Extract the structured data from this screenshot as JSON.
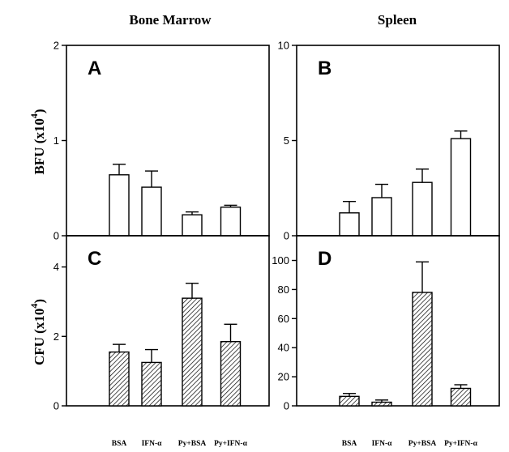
{
  "columns": {
    "left": "Bone Marrow",
    "right": "Spleen"
  },
  "ylabels": {
    "top": {
      "main": "BFU (x10",
      "sup": "4",
      "close": ")"
    },
    "bottom": {
      "main": "CFU (x10",
      "sup": "4",
      "close": ")"
    }
  },
  "colors": {
    "bar_fill": "#ffffff",
    "stroke": "#000000",
    "hatch": "#000000"
  },
  "chart_data": [
    {
      "type": "bar",
      "panel": "A",
      "title": "",
      "xlabel": "",
      "ylabel": "BFU (x10^4)",
      "categories": [
        "BSA",
        "IFN-α",
        "Py+BSA",
        "Py+IFN-α"
      ],
      "values": [
        0.64,
        0.51,
        0.22,
        0.3
      ],
      "errors": [
        0.11,
        0.17,
        0.03,
        0.02
      ],
      "ylim": [
        0,
        2
      ],
      "yticks": [
        0,
        1,
        2
      ],
      "fill": "open",
      "grid": false
    },
    {
      "type": "bar",
      "panel": "B",
      "title": "",
      "xlabel": "",
      "ylabel": "",
      "categories": [
        "BSA",
        "IFN-α",
        "Py+BSA",
        "Py+IFN-α"
      ],
      "values": [
        1.2,
        2.0,
        2.8,
        5.1
      ],
      "errors": [
        0.6,
        0.7,
        0.7,
        0.4
      ],
      "ylim": [
        0,
        10
      ],
      "yticks": [
        0,
        5,
        10
      ],
      "fill": "open",
      "grid": false
    },
    {
      "type": "bar",
      "panel": "C",
      "title": "",
      "xlabel": "",
      "ylabel": "CFU (x10^4)",
      "categories": [
        "BSA",
        "IFN-α",
        "Py+BSA",
        "Py+IFN-α"
      ],
      "values": [
        1.55,
        1.25,
        3.1,
        1.85
      ],
      "errors": [
        0.22,
        0.37,
        0.43,
        0.5
      ],
      "ylim": [
        0,
        4.9
      ],
      "yticks": [
        0,
        2,
        4
      ],
      "fill": "hatched",
      "grid": false
    },
    {
      "type": "bar",
      "panel": "D",
      "title": "",
      "xlabel": "",
      "ylabel": "",
      "categories": [
        "BSA",
        "IFN-α",
        "Py+BSA",
        "Py+IFN-α"
      ],
      "values": [
        6.5,
        2.5,
        78,
        12
      ],
      "errors": [
        2.0,
        1.5,
        21,
        2.5
      ],
      "ylim": [
        0,
        117
      ],
      "yticks": [
        0,
        20,
        40,
        60,
        80,
        100
      ],
      "fill": "hatched",
      "grid": false
    }
  ]
}
